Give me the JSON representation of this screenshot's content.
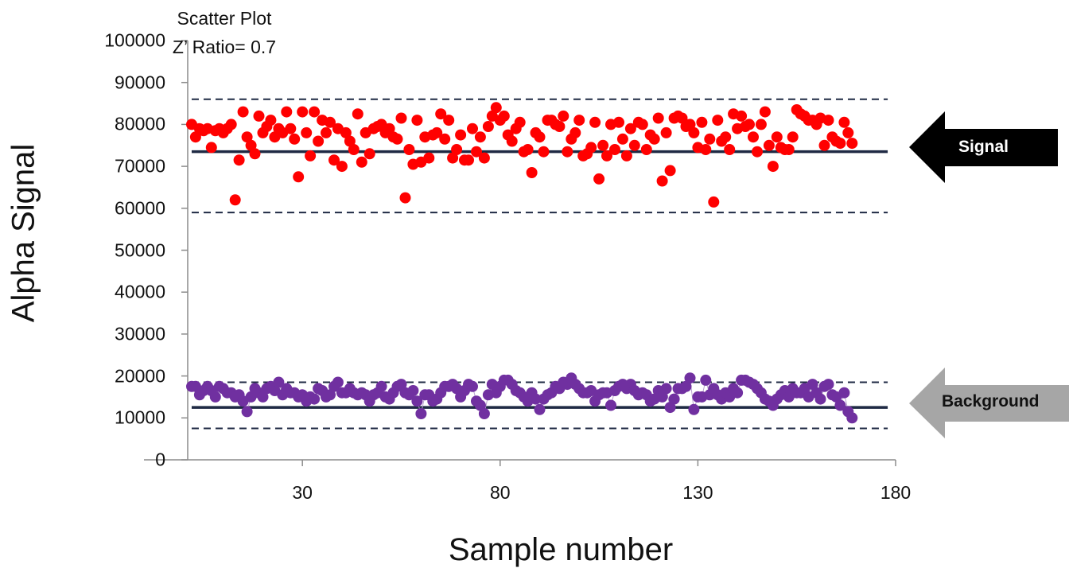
{
  "chart_data": {
    "type": "scatter",
    "title": "Scatter Plot",
    "subtitle": "Z’ Ratio= 0.7",
    "xlabel": "Sample number",
    "ylabel": "Alpha Signal",
    "xlim": [
      1,
      180
    ],
    "ylim": [
      0,
      100000
    ],
    "x_ticks": [
      30,
      80,
      130,
      180
    ],
    "y_ticks": [
      0,
      10000,
      20000,
      30000,
      40000,
      50000,
      60000,
      70000,
      80000,
      90000,
      100000
    ],
    "grid": false,
    "colors": {
      "signal": "#ff0000",
      "background": "#7030a0",
      "mean_line": "#1f2a44",
      "signal_arrow": "#000000",
      "background_arrow": "#a6a6a6"
    },
    "reference_lines": {
      "signal_mean": 73500,
      "signal_upper": 86000,
      "signal_lower": 59000,
      "background_mean": 12500,
      "background_upper": 18500,
      "background_lower": 7500
    },
    "annotations": [
      "Signal",
      "Background"
    ],
    "series": [
      {
        "key": "signal",
        "x_start": 2,
        "values": [
          80000,
          77000,
          79000,
          78500,
          79000,
          74500,
          78500,
          79000,
          78000,
          79000,
          80000,
          62000,
          71500,
          83000,
          77000,
          75000,
          73000,
          82000,
          78000,
          79500,
          81000,
          77000,
          79000,
          78000,
          83000,
          79000,
          76500,
          67500,
          83000,
          78000,
          72500,
          83000,
          76000,
          81000,
          78000,
          80500,
          71500,
          79000,
          70000,
          78000,
          76000,
          74000,
          82500,
          71000,
          78000,
          73000,
          79000,
          79500,
          80000,
          78000,
          79000,
          77000,
          76500,
          81500,
          62500,
          74000,
          70500,
          81000,
          71000,
          77000,
          72000,
          77500,
          78000,
          82500,
          76500,
          81000,
          72000,
          74000,
          77500,
          71500,
          71500,
          79000,
          73500,
          77000,
          72000,
          79500,
          82000,
          84000,
          81000,
          82000,
          77500,
          76000,
          79000,
          80500,
          73500,
          74000,
          68500,
          78000,
          77000,
          73500,
          81000,
          81000,
          80000,
          79500,
          82000,
          73500,
          76500,
          78000,
          81000,
          72500,
          73000,
          74500,
          80500,
          67000,
          75000,
          72500,
          80000,
          74000,
          80500,
          76500,
          72500,
          79000,
          75000,
          80500,
          80000,
          74000,
          77500,
          76500,
          81500,
          66500,
          78000,
          69000,
          81500,
          82000,
          81500,
          79500,
          80000,
          78000,
          74500,
          80500,
          74000,
          76500,
          61500,
          81000,
          76000,
          77000,
          74000,
          82500,
          79000,
          82000,
          79500,
          80000,
          77000,
          73500,
          80000,
          83000,
          75000,
          70000,
          77000,
          74500,
          74000,
          74000,
          77000,
          83500,
          82500,
          82000,
          81000,
          81000,
          80000,
          81500,
          75000,
          81000,
          77000,
          76000,
          75500,
          80500,
          78000,
          75500
        ],
        "note": ""
      },
      {
        "key": "background",
        "x_start": 2,
        "values": [
          17500,
          17500,
          15500,
          16500,
          17500,
          16500,
          15000,
          17500,
          17000,
          16000,
          16000,
          15000,
          15500,
          14000,
          11500,
          15000,
          17000,
          16000,
          15000,
          17000,
          17500,
          16500,
          18500,
          15500,
          17000,
          16000,
          16000,
          15000,
          15500,
          14000,
          15000,
          14500,
          17000,
          16500,
          15000,
          15500,
          17500,
          18500,
          16000,
          16000,
          17000,
          16000,
          15500,
          16000,
          15500,
          14000,
          15500,
          16000,
          17500,
          15000,
          14500,
          16000,
          17500,
          18000,
          16000,
          15500,
          16500,
          14000,
          11000,
          15500,
          15500,
          14000,
          14500,
          16000,
          17500,
          17500,
          18000,
          17000,
          15000,
          16500,
          18000,
          17500,
          14000,
          13000,
          11000,
          15500,
          18000,
          16000,
          17500,
          19000,
          19000,
          18000,
          16500,
          16000,
          15000,
          14000,
          16000,
          14500,
          12000,
          14500,
          15500,
          16000,
          17500,
          17000,
          18500,
          18000,
          19500,
          18000,
          17000,
          16000,
          16000,
          16500,
          14000,
          15500,
          16000,
          16000,
          13000,
          16500,
          17500,
          18000,
          17000,
          18000,
          16500,
          15500,
          16000,
          15500,
          14000,
          14500,
          16500,
          15000,
          17000,
          12500,
          14500,
          17000,
          17000,
          17500,
          19500,
          12000,
          15000,
          15000,
          19000,
          15500,
          17000,
          15500,
          14500,
          16000,
          15000,
          17000,
          16000,
          19000,
          19000,
          18500,
          18000,
          17000,
          16000,
          14500,
          14000,
          13000,
          14500,
          15500,
          16500,
          15000,
          17000,
          16000,
          16000,
          17000,
          15000,
          18000,
          16000,
          14500,
          17500,
          18000,
          15500,
          15000,
          13000,
          16000,
          11500,
          10000
        ],
        "note": ""
      }
    ]
  },
  "labels": {
    "title": "Scatter Plot",
    "subtitle": "Z’ Ratio= 0.7",
    "xlabel": "Sample number",
    "ylabel": "Alpha Signal",
    "signal_arrow": "Signal",
    "background_arrow": "Background",
    "y_ticks": [
      "0",
      "10000",
      "20000",
      "30000",
      "40000",
      "50000",
      "60000",
      "70000",
      "80000",
      "90000",
      "100000"
    ],
    "x_ticks": [
      "30",
      "80",
      "130",
      "180"
    ]
  }
}
